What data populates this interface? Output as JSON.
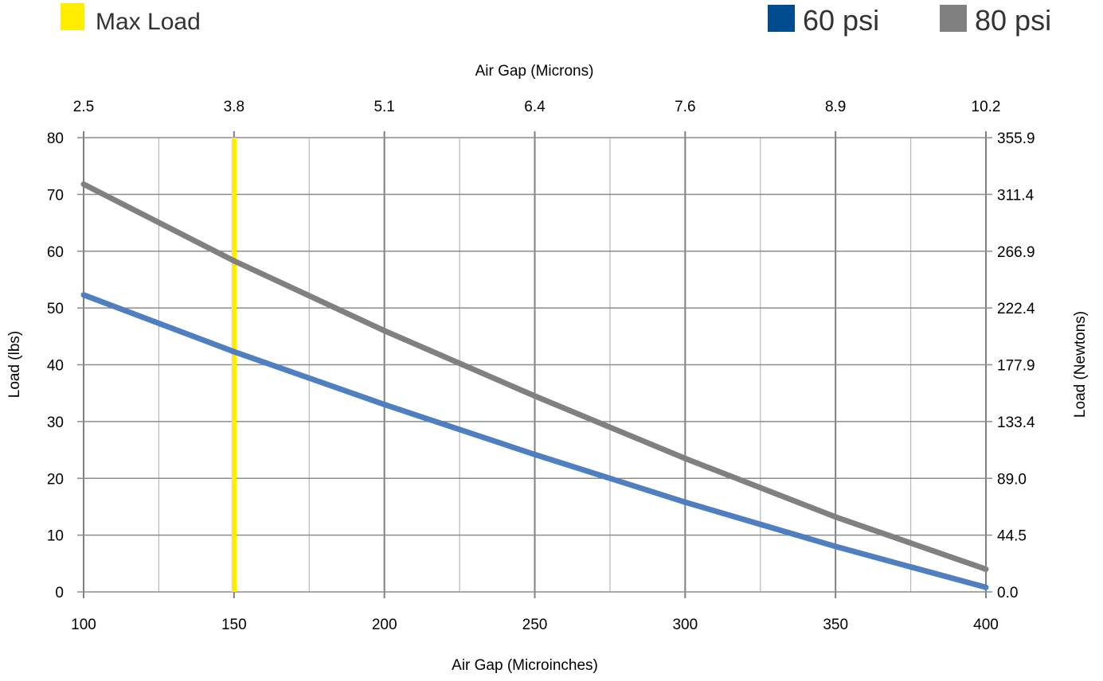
{
  "chart_data": {
    "type": "line",
    "title": "",
    "legend": {
      "placement": "top",
      "items": [
        {
          "label": "Max Load",
          "color": "#FFED00"
        },
        {
          "label": "60 psi",
          "color": "#004B8D"
        },
        {
          "label": "80 psi",
          "color": "#808080"
        }
      ]
    },
    "x_bottom": {
      "label": "Air Gap (Microinches)",
      "range": [
        100,
        400
      ],
      "ticks": [
        100,
        150,
        200,
        250,
        300,
        350,
        400
      ],
      "tick_labels": [
        "100",
        "150",
        "200",
        "250",
        "300",
        "350",
        "400"
      ],
      "minor_step": 25
    },
    "x_top": {
      "label": "Air Gap (Microns)",
      "tick_labels": [
        "2.5",
        "3.8",
        "5.1",
        "6.4",
        "7.6",
        "8.9",
        "10.2"
      ]
    },
    "y_left": {
      "label": "Load (lbs)",
      "range": [
        0,
        80
      ],
      "ticks": [
        0,
        10,
        20,
        30,
        40,
        50,
        60,
        70,
        80
      ],
      "tick_labels": [
        "0",
        "10",
        "20",
        "30",
        "40",
        "50",
        "60",
        "70",
        "80"
      ]
    },
    "y_right": {
      "label": "Load (Newtons)",
      "tick_labels": [
        "0.0",
        "44.5",
        "89.0",
        "133.4",
        "177.9",
        "222.4",
        "266.9",
        "311.4",
        "355.9"
      ]
    },
    "grid": true,
    "max_load_x": 150,
    "series": [
      {
        "name": "60 psi",
        "color": "#4F7FC0",
        "x": [
          100,
          150,
          200,
          250,
          300,
          350,
          400
        ],
        "y": [
          52.3,
          42.3,
          33.0,
          24.2,
          15.8,
          8.0,
          0.8
        ]
      },
      {
        "name": "80 psi",
        "color": "#808080",
        "x": [
          100,
          150,
          200,
          250,
          300,
          350,
          400
        ],
        "y": [
          71.8,
          58.3,
          46.0,
          34.5,
          23.5,
          13.2,
          4.0
        ]
      }
    ]
  }
}
